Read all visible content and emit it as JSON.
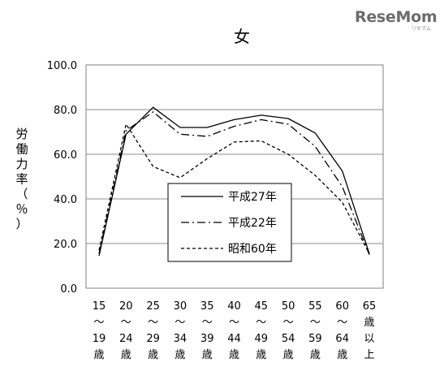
{
  "brand": {
    "logo_text": "ReseMom",
    "logo_sub": "リセマム"
  },
  "chart_data": {
    "type": "line",
    "title": "女",
    "ylabel_chars": [
      "労",
      "働",
      "力",
      "率",
      "（",
      "％",
      "）"
    ],
    "ylim": [
      0,
      100
    ],
    "yticks": [
      "100.0",
      "80.0",
      "60.0",
      "40.0",
      "20.0",
      "0.0"
    ],
    "ytick_values": [
      100,
      80,
      60,
      40,
      20,
      0
    ],
    "grid": true,
    "legend_position": "center-bottom",
    "categories": [
      [
        "15",
        "〜",
        "19",
        "歳"
      ],
      [
        "20",
        "〜",
        "24",
        "歳"
      ],
      [
        "25",
        "〜",
        "29",
        "歳"
      ],
      [
        "30",
        "〜",
        "34",
        "歳"
      ],
      [
        "35",
        "〜",
        "39",
        "歳"
      ],
      [
        "40",
        "〜",
        "44",
        "歳"
      ],
      [
        "45",
        "〜",
        "49",
        "歳"
      ],
      [
        "50",
        "〜",
        "54",
        "歳"
      ],
      [
        "55",
        "〜",
        "59",
        "歳"
      ],
      [
        "60",
        "〜",
        "64",
        "歳"
      ],
      [
        "65",
        "歳",
        "以",
        "上"
      ]
    ],
    "series": [
      {
        "name": "平成27年",
        "style": "solid",
        "color": "#000000",
        "values": [
          14.5,
          69,
          81,
          72,
          72,
          75.5,
          77.5,
          76,
          69.5,
          52.5,
          15.5
        ]
      },
      {
        "name": "平成22年",
        "style": "dashdot",
        "color": "#000000",
        "values": [
          15.5,
          70.5,
          79,
          69,
          68,
          72.5,
          75.5,
          73.5,
          63.5,
          45.5,
          15
        ]
      },
      {
        "name": "昭和60年",
        "style": "dashed",
        "color": "#000000",
        "values": [
          17,
          73.5,
          54.5,
          49.5,
          58,
          65.5,
          66,
          60,
          50.5,
          38.5,
          15.5
        ]
      }
    ]
  }
}
